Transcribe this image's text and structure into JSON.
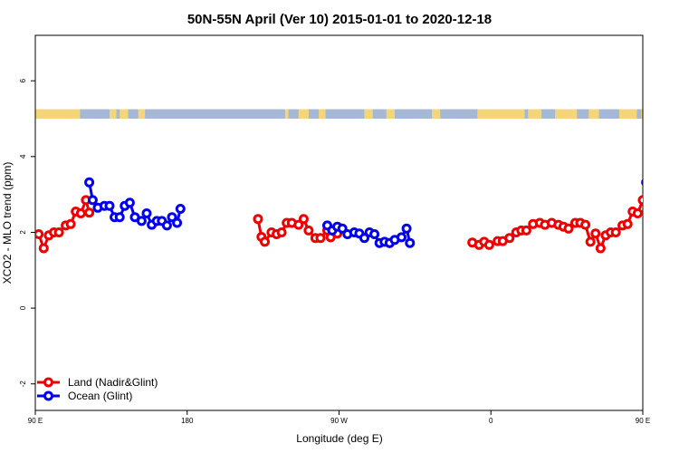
{
  "chart_data": {
    "type": "line",
    "title": "50N-55N April (Ver 10)   2015-01-01 to 2020-12-18",
    "xlabel": "Longitude (deg E)",
    "ylabel": "XCO2 - MLO trend (ppm)",
    "xlim": [
      90,
      450
    ],
    "ylim": [
      -2.7,
      7.2
    ],
    "x_ticks": [
      {
        "value": 90,
        "label": "90 E"
      },
      {
        "value": 180,
        "label": "180"
      },
      {
        "value": 270,
        "label": "90 W"
      },
      {
        "value": 360,
        "label": "0"
      },
      {
        "value": 450,
        "label": "90 E"
      },
      {
        "value": 540,
        "label": "180"
      }
    ],
    "y_ticks": [
      {
        "value": -2,
        "label": "-2"
      },
      {
        "value": 0,
        "label": "0"
      },
      {
        "value": 2,
        "label": "2"
      },
      {
        "value": 4,
        "label": "4"
      },
      {
        "value": 6,
        "label": "6"
      }
    ],
    "land_ocean_strip": {
      "y_range": [
        5.0,
        5.25
      ],
      "land_color": "#f5d57a",
      "ocean_color": "#a5b8d6",
      "land_x": [
        90,
        452
      ]
    },
    "legend": {
      "position": "bottom-left"
    },
    "series": [
      {
        "name": "Land (Nadir&Glint)",
        "color": "#ee0000",
        "segments": [
          [
            [
              92,
              1.95
            ],
            [
              95,
              1.58
            ],
            [
              98,
              1.92
            ],
            [
              101,
              2.0
            ],
            [
              104,
              2.0
            ],
            [
              108,
              2.18
            ],
            [
              111,
              2.22
            ],
            [
              114,
              2.55
            ],
            [
              117,
              2.5
            ],
            [
              120,
              2.85
            ],
            [
              122,
              2.52
            ]
          ],
          [
            [
              222,
              2.35
            ],
            [
              224,
              1.88
            ],
            [
              226,
              1.75
            ],
            [
              230,
              2.0
            ],
            [
              233,
              1.95
            ],
            [
              236,
              2.0
            ],
            [
              239,
              2.25
            ],
            [
              242,
              2.25
            ],
            [
              246,
              2.2
            ],
            [
              249,
              2.35
            ],
            [
              252,
              2.05
            ],
            [
              256,
              1.85
            ],
            [
              259,
              1.85
            ],
            [
              263,
              2.05
            ],
            [
              265,
              1.87
            ],
            [
              269,
              1.97
            ]
          ],
          [
            [
              349,
              1.73
            ],
            [
              353,
              1.67
            ],
            [
              356,
              1.75
            ],
            [
              359,
              1.67
            ],
            [
              364,
              1.77
            ],
            [
              367,
              1.77
            ],
            [
              371,
              1.85
            ],
            [
              375,
              2.0
            ],
            [
              378,
              2.05
            ],
            [
              381,
              2.05
            ],
            [
              385,
              2.22
            ],
            [
              389,
              2.25
            ],
            [
              392,
              2.2
            ],
            [
              396,
              2.25
            ],
            [
              400,
              2.2
            ],
            [
              403,
              2.15
            ],
            [
              406,
              2.1
            ],
            [
              410,
              2.25
            ],
            [
              413,
              2.25
            ],
            [
              416,
              2.2
            ],
            [
              419,
              1.75
            ],
            [
              422,
              1.97
            ],
            [
              425,
              1.58
            ],
            [
              428,
              1.92
            ],
            [
              431,
              2.0
            ],
            [
              434,
              2.0
            ],
            [
              438,
              2.18
            ],
            [
              441,
              2.22
            ],
            [
              444,
              2.55
            ],
            [
              447,
              2.5
            ],
            [
              450,
              2.85
            ],
            [
              452,
              2.52
            ]
          ]
        ]
      },
      {
        "name": "Ocean (Glint)",
        "color": "#0000ee",
        "segments": [
          [
            [
              122,
              3.32
            ],
            [
              124,
              2.85
            ],
            [
              127,
              2.65
            ],
            [
              131,
              2.7
            ],
            [
              134,
              2.7
            ],
            [
              137,
              2.4
            ],
            [
              140,
              2.4
            ],
            [
              143,
              2.7
            ],
            [
              146,
              2.78
            ],
            [
              149,
              2.4
            ],
            [
              153,
              2.3
            ],
            [
              156,
              2.5
            ],
            [
              159,
              2.2
            ],
            [
              162,
              2.3
            ],
            [
              165,
              2.3
            ],
            [
              168,
              2.18
            ],
            [
              171,
              2.4
            ],
            [
              174,
              2.25
            ],
            [
              176,
              2.62
            ]
          ],
          [
            [
              263,
              2.18
            ],
            [
              266,
              2.05
            ],
            [
              269,
              2.15
            ],
            [
              272,
              2.1
            ],
            [
              275,
              1.95
            ],
            [
              279,
              2.0
            ],
            [
              282,
              1.97
            ],
            [
              285,
              1.85
            ],
            [
              288,
              2.0
            ],
            [
              291,
              1.95
            ],
            [
              294,
              1.72
            ],
            [
              297,
              1.75
            ],
            [
              300,
              1.72
            ]
          ],
          [
            [
              300,
              1.72
            ],
            [
              303,
              1.8
            ],
            [
              307,
              1.87
            ],
            [
              310,
              2.1
            ],
            [
              312,
              1.72
            ]
          ],
          [
            [
              452,
              3.32
            ],
            [
              454,
              2.85
            ],
            [
              457,
              2.65
            ],
            [
              461,
              2.7
            ],
            [
              464,
              2.72
            ],
            [
              467,
              2.4
            ],
            [
              470,
              2.4
            ],
            [
              473,
              2.65
            ]
          ]
        ]
      }
    ]
  }
}
